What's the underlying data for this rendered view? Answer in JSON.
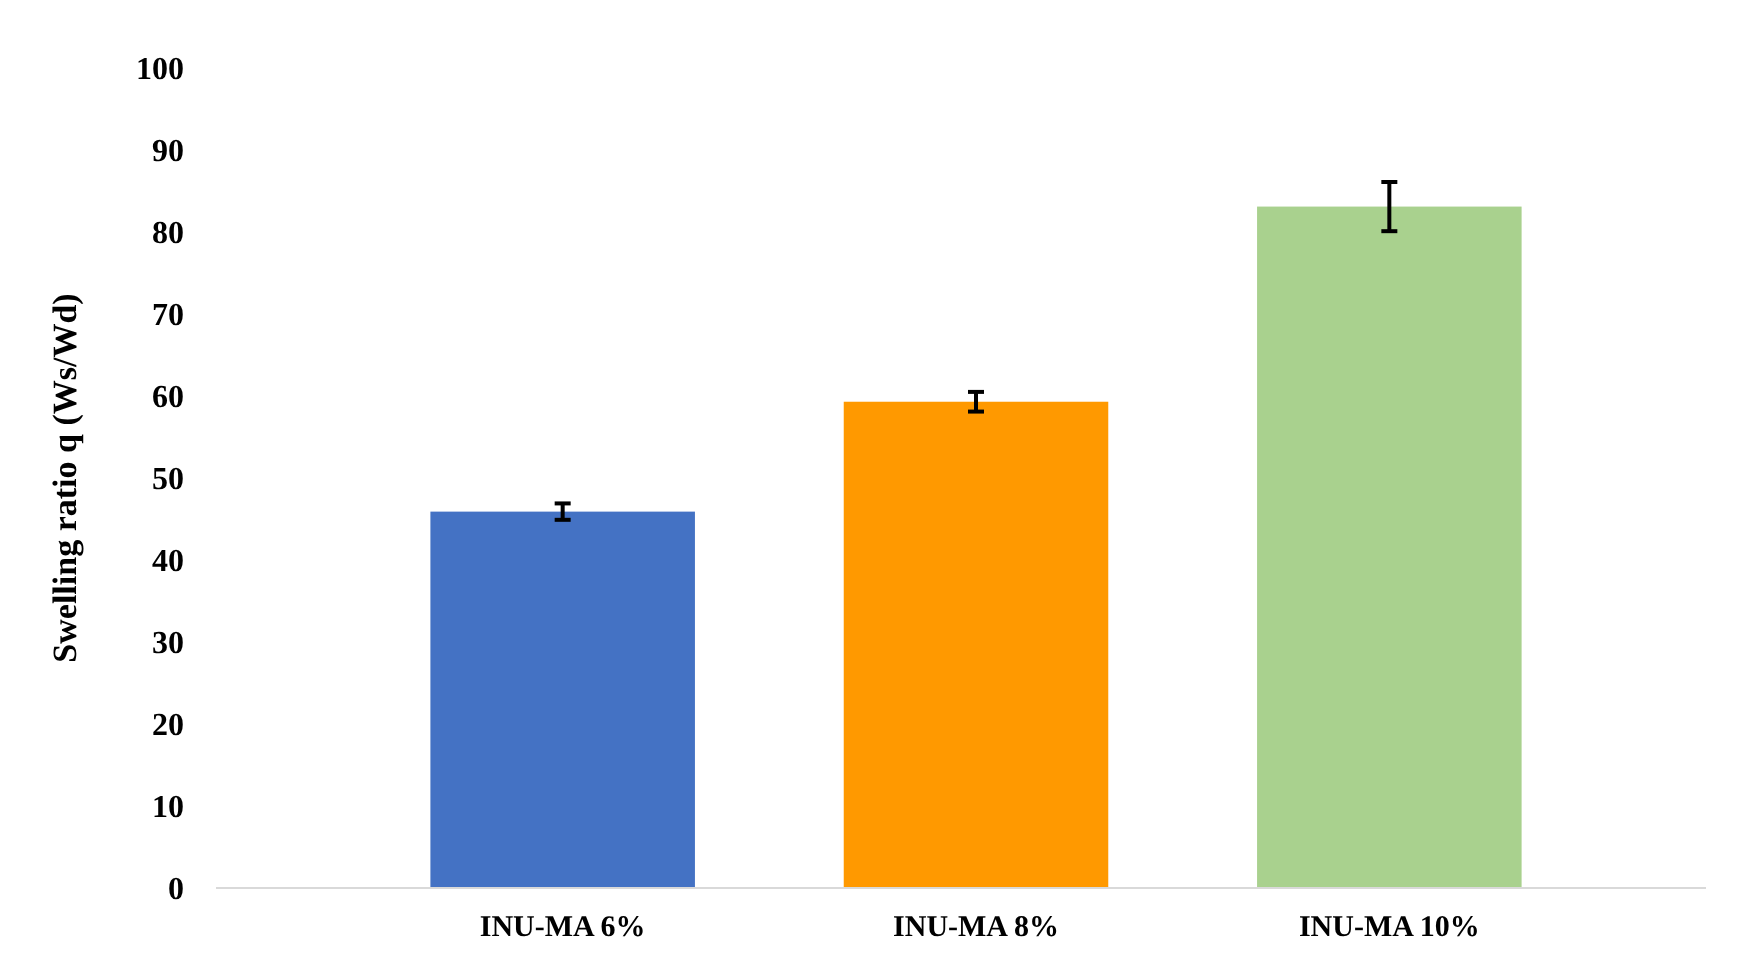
{
  "chart_data": {
    "type": "bar",
    "ylabel": "Swelling ratio q (Ws/Wd)",
    "categories": [
      "INU-MA 6%",
      "INU-MA 8%",
      "INU-MA 10%"
    ],
    "values": [
      45.9,
      59.3,
      83.1
    ],
    "colors": [
      "#4472c4",
      "#ff9900",
      "#a9d18e"
    ],
    "errors": [
      1,
      1.2,
      3
    ],
    "ylim": [
      0,
      100
    ],
    "yticks": [
      0,
      10,
      20,
      30,
      40,
      50,
      60,
      70,
      80,
      90,
      100
    ],
    "grid": false
  }
}
